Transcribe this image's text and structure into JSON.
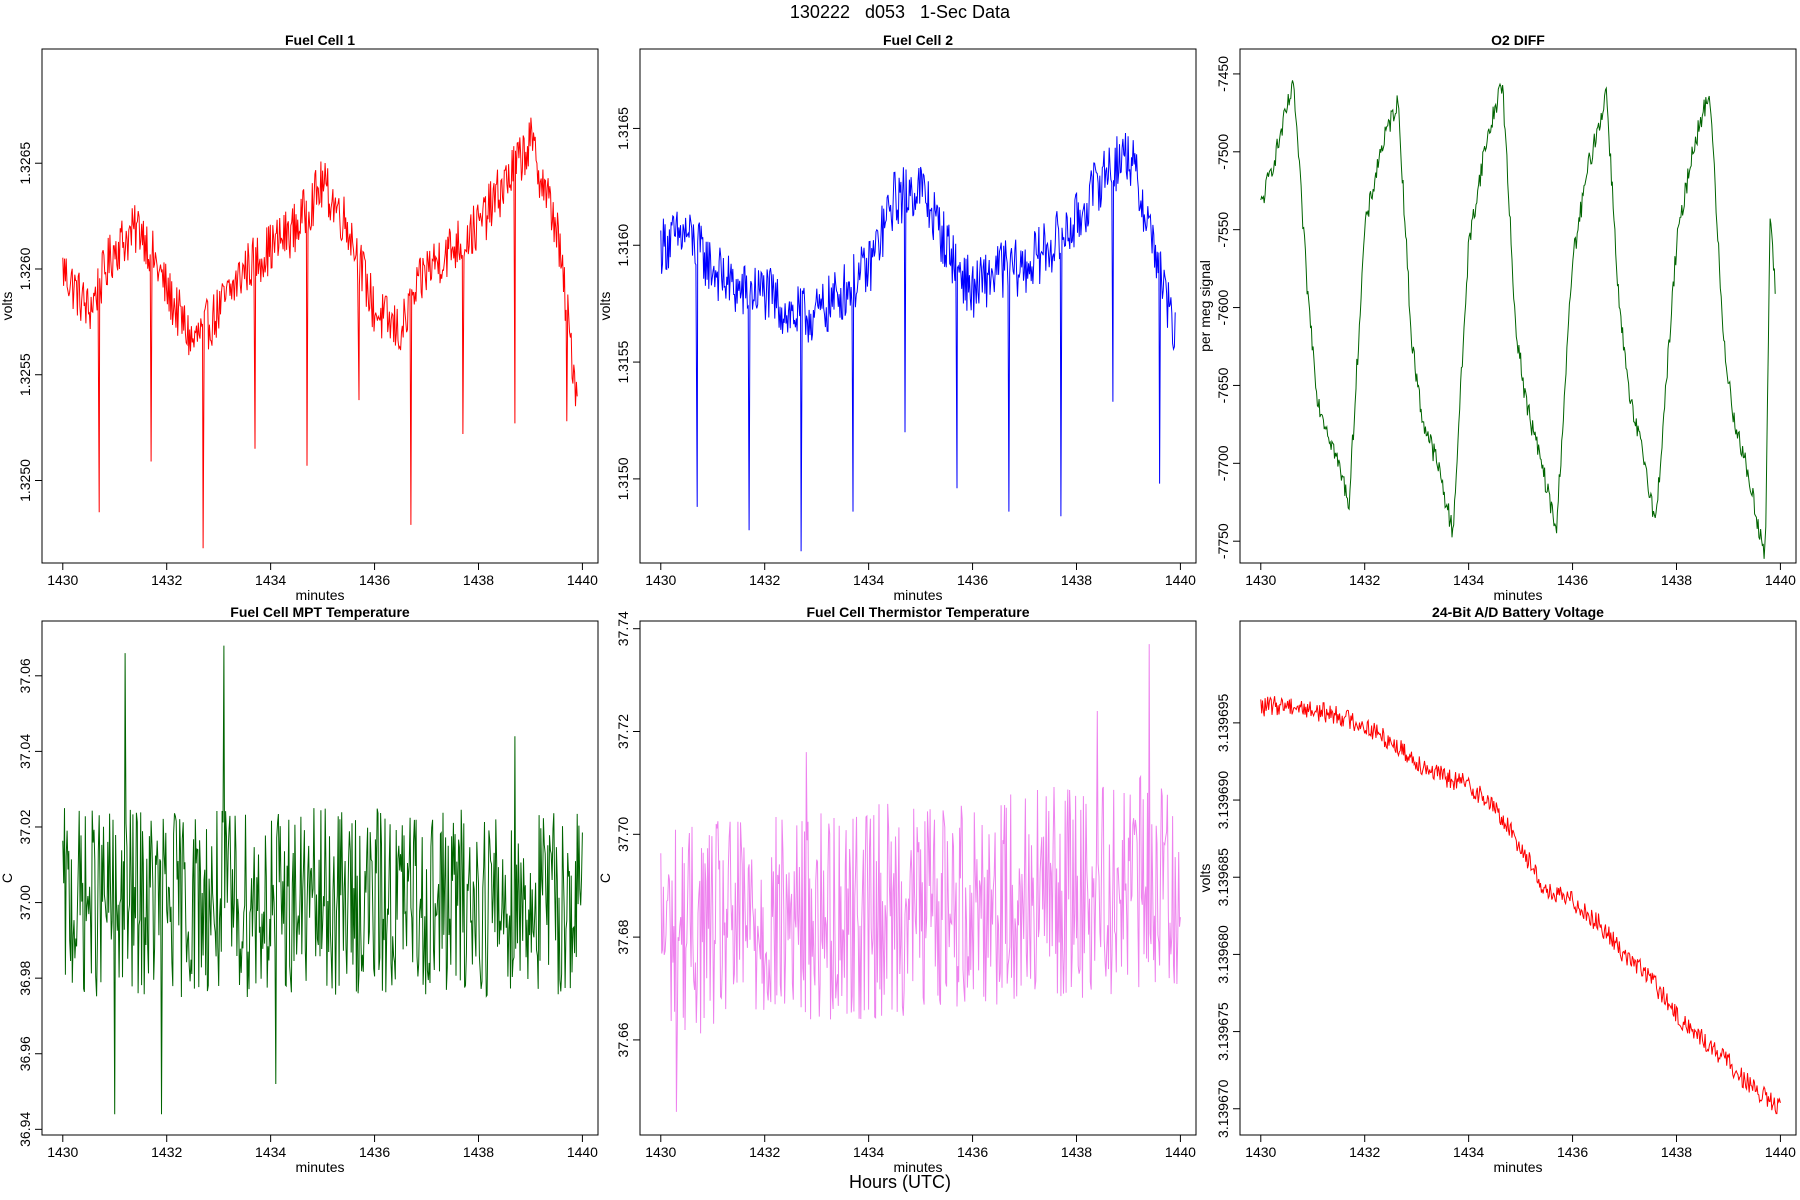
{
  "page_title": "130222   d053   1-Sec Data",
  "global_xlabel": "Hours (UTC)",
  "chart_data": [
    {
      "type": "line",
      "title": "Fuel Cell 1",
      "xlabel": "minutes",
      "ylabel": "volts",
      "color": "#ff0000",
      "xlim": [
        1429.6,
        1440.3
      ],
      "ylim": [
        1.32461,
        1.32704
      ],
      "xticks": [
        1430,
        1432,
        1434,
        1436,
        1438,
        1440
      ],
      "yticks": [
        1.325,
        1.3255,
        1.326,
        1.3265
      ],
      "ytick_labels": [
        "1.3250",
        "1.3255",
        "1.3260",
        "1.3265"
      ],
      "x": [
        1430.0,
        1430.5,
        1431.0,
        1431.5,
        1432.0,
        1432.5,
        1433.0,
        1433.5,
        1434.0,
        1434.5,
        1435.0,
        1435.5,
        1436.0,
        1436.5,
        1437.0,
        1437.5,
        1438.0,
        1438.5,
        1439.0,
        1439.5,
        1439.9
      ],
      "y": [
        1.326,
        1.3258,
        1.3261,
        1.3262,
        1.3259,
        1.32565,
        1.3258,
        1.326,
        1.3261,
        1.3262,
        1.3264,
        1.3262,
        1.3258,
        1.3257,
        1.326,
        1.3261,
        1.3262,
        1.3264,
        1.3266,
        1.3262,
        1.3254
      ],
      "noise": 0.00025,
      "spikes": [
        [
          1430.7,
          1.32485
        ],
        [
          1431.7,
          1.32509
        ],
        [
          1432.7,
          1.32468
        ],
        [
          1433.7,
          1.32515
        ],
        [
          1434.7,
          1.32507
        ],
        [
          1435.7,
          1.32538
        ],
        [
          1436.7,
          1.32479
        ],
        [
          1437.7,
          1.32522
        ],
        [
          1438.7,
          1.32527
        ],
        [
          1439.7,
          1.32528
        ]
      ]
    },
    {
      "type": "line",
      "title": "Fuel Cell 2",
      "xlabel": "minutes",
      "ylabel": "volts",
      "color": "#0000ff",
      "xlim": [
        1429.6,
        1440.3
      ],
      "ylim": [
        1.31464,
        1.31684
      ],
      "xticks": [
        1430,
        1432,
        1434,
        1436,
        1438,
        1440
      ],
      "yticks": [
        1.315,
        1.3155,
        1.316,
        1.3165
      ],
      "ytick_labels": [
        "1.3150",
        "1.3155",
        "1.3160",
        "1.3165"
      ],
      "x": [
        1430.0,
        1430.5,
        1431.0,
        1431.5,
        1432.0,
        1432.5,
        1433.0,
        1433.5,
        1434.0,
        1434.5,
        1435.0,
        1435.5,
        1436.0,
        1436.5,
        1437.0,
        1437.5,
        1438.0,
        1438.5,
        1439.0,
        1439.5,
        1439.9
      ],
      "y": [
        1.316,
        1.31605,
        1.3159,
        1.3158,
        1.3158,
        1.3157,
        1.3157,
        1.3158,
        1.3159,
        1.3162,
        1.31625,
        1.316,
        1.3158,
        1.3159,
        1.3159,
        1.316,
        1.3161,
        1.3163,
        1.3164,
        1.316,
        1.3156
      ],
      "noise": 0.00025,
      "spikes": [
        [
          1430.7,
          1.31488
        ],
        [
          1431.7,
          1.31478
        ],
        [
          1432.7,
          1.31469
        ],
        [
          1433.7,
          1.31486
        ],
        [
          1434.7,
          1.3152
        ],
        [
          1435.7,
          1.31496
        ],
        [
          1436.7,
          1.31486
        ],
        [
          1437.7,
          1.31484
        ],
        [
          1438.7,
          1.31533
        ],
        [
          1439.6,
          1.31498
        ]
      ]
    },
    {
      "type": "line",
      "title": "O2 DIFF",
      "xlabel": "minutes",
      "ylabel": "per meg signal",
      "color": "#006400",
      "xlim": [
        1429.6,
        1440.3
      ],
      "ylim": [
        -7764,
        -7434
      ],
      "xticks": [
        1430,
        1432,
        1434,
        1436,
        1438,
        1440
      ],
      "yticks": [
        -7750,
        -7700,
        -7650,
        -7600,
        -7550,
        -7500,
        -7450
      ],
      "ytick_labels": [
        "-7750",
        "-7700",
        "-7650",
        "-7600",
        "-7550",
        "-7500",
        "-7450"
      ],
      "x": [
        1430.0,
        1430.3,
        1430.6,
        1430.65,
        1430.9,
        1431.1,
        1431.4,
        1431.7,
        1431.72,
        1432.0,
        1432.3,
        1432.6,
        1432.65,
        1432.9,
        1433.1,
        1433.4,
        1433.7,
        1433.72,
        1434.0,
        1434.3,
        1434.6,
        1434.65,
        1434.9,
        1435.1,
        1435.4,
        1435.7,
        1435.72,
        1436.0,
        1436.3,
        1436.6,
        1436.65,
        1436.9,
        1437.1,
        1437.4,
        1437.6,
        1437.62,
        1438.0,
        1438.3,
        1438.6,
        1438.65,
        1438.9,
        1439.1,
        1439.4,
        1439.7,
        1439.72,
        1439.8,
        1439.9
      ],
      "y": [
        -7535,
        -7500,
        -7460,
        -7465,
        -7590,
        -7660,
        -7690,
        -7725,
        -7715,
        -7550,
        -7500,
        -7470,
        -7470,
        -7620,
        -7670,
        -7700,
        -7745,
        -7730,
        -7560,
        -7500,
        -7460,
        -7455,
        -7610,
        -7660,
        -7700,
        -7745,
        -7725,
        -7570,
        -7510,
        -7470,
        -7460,
        -7600,
        -7660,
        -7700,
        -7740,
        -7730,
        -7560,
        -7500,
        -7465,
        -7465,
        -7620,
        -7670,
        -7710,
        -7760,
        -7740,
        -7540,
        -7590
      ],
      "noise": 14
    },
    {
      "type": "line",
      "title": "Fuel Cell MPT Temperature",
      "xlabel": "minutes",
      "ylabel": "C",
      "color": "#006400",
      "xlim": [
        1429.6,
        1440.3
      ],
      "ylim": [
        36.9385,
        37.0745
      ],
      "xticks": [
        1430,
        1432,
        1434,
        1436,
        1438,
        1440
      ],
      "yticks": [
        36.94,
        36.96,
        36.98,
        37.0,
        37.02,
        37.04,
        37.06
      ],
      "ytick_labels": [
        "36.94",
        "36.96",
        "36.98",
        "37.00",
        "37.02",
        "37.04",
        "37.06"
      ],
      "x": [
        1430.0,
        1440.0
      ],
      "y": [
        37.0,
        37.0
      ],
      "noise": 0.05,
      "spikes": [
        [
          1431.0,
          36.944
        ],
        [
          1431.2,
          37.066
        ],
        [
          1431.9,
          36.944
        ],
        [
          1433.1,
          37.068
        ],
        [
          1434.1,
          36.952
        ],
        [
          1438.7,
          37.044
        ]
      ]
    },
    {
      "type": "line",
      "title": "Fuel Cell Thermistor Temperature",
      "xlabel": "minutes",
      "ylabel": "C",
      "color": "#ee82ee",
      "xlim": [
        1429.6,
        1440.3
      ],
      "ylim": [
        37.6415,
        37.7415
      ],
      "xticks": [
        1430,
        1432,
        1434,
        1436,
        1438,
        1440
      ],
      "yticks": [
        37.66,
        37.68,
        37.7,
        37.72,
        37.74
      ],
      "ytick_labels": [
        "37.66",
        "37.68",
        "37.70",
        "37.72",
        "37.74"
      ],
      "x": [
        1430.0,
        1440.0
      ],
      "y": [
        37.681,
        37.691
      ],
      "noise": 0.042,
      "spikes": [
        [
          1430.3,
          37.646
        ],
        [
          1432.8,
          37.716
        ],
        [
          1439.4,
          37.737
        ],
        [
          1438.4,
          37.724
        ]
      ]
    },
    {
      "type": "line",
      "title": "24-Bit A/D Battery Voltage",
      "xlabel": "minutes",
      "ylabel": "volts",
      "color": "#ff0000",
      "xlim": [
        1429.6,
        1440.3
      ],
      "ylim": [
        3.1396683,
        3.1397016
      ],
      "xticks": [
        1430,
        1432,
        1434,
        1436,
        1438,
        1440
      ],
      "yticks": [
        3.13967,
        3.139675,
        3.13968,
        3.139685,
        3.13969,
        3.139695
      ],
      "ytick_labels": [
        "3.139670",
        "3.139675",
        "3.139680",
        "3.139685",
        "3.139690",
        "3.139695"
      ],
      "x": [
        1430.0,
        1430.5,
        1431.0,
        1431.5,
        1432.0,
        1432.5,
        1433.0,
        1433.5,
        1434.0,
        1434.5,
        1435.0,
        1435.5,
        1436.0,
        1436.5,
        1437.0,
        1437.5,
        1438.0,
        1438.5,
        1439.0,
        1439.5,
        1440.0
      ],
      "y": [
        3.139696,
        3.1396962,
        3.1396958,
        3.1396955,
        3.1396948,
        3.1396938,
        3.1396925,
        3.1396915,
        3.139691,
        3.1396895,
        3.139687,
        3.139684,
        3.1396835,
        3.139682,
        3.13968,
        3.1396785,
        3.139676,
        3.1396745,
        3.139673,
        3.1396712,
        3.13967
      ],
      "noise": 1.3e-06
    }
  ]
}
